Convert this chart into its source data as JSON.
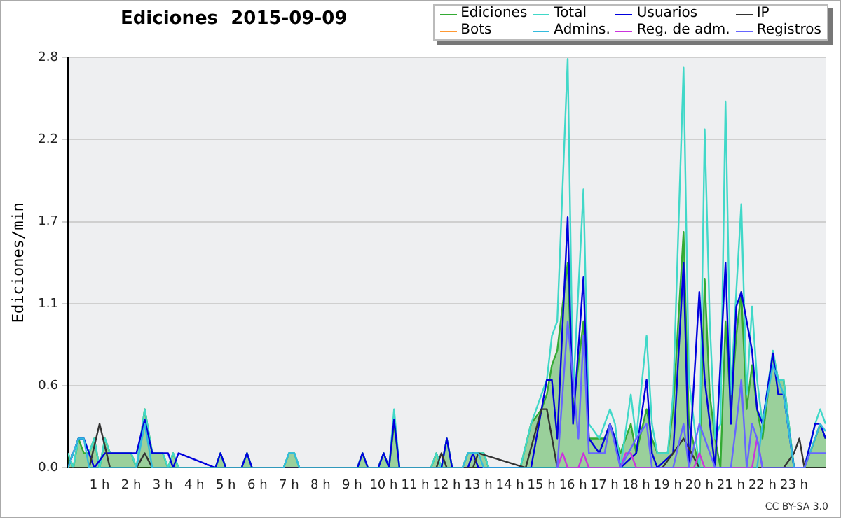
{
  "chart_data": {
    "type": "line",
    "title": "Ediciones  2015-09-09",
    "ylabel": "Ediciones/min",
    "annotations": [
      "CC BY-SA 3.0"
    ],
    "xlim": [
      0,
      24
    ],
    "xticks": [
      {
        "value": 1,
        "label": "1 h"
      },
      {
        "value": 2,
        "label": "2 h"
      },
      {
        "value": 3,
        "label": "3 h"
      },
      {
        "value": 4,
        "label": "4 h"
      },
      {
        "value": 5,
        "label": "5 h"
      },
      {
        "value": 6,
        "label": "6 h"
      },
      {
        "value": 7,
        "label": "7 h"
      },
      {
        "value": 8,
        "label": "8 h"
      },
      {
        "value": 9,
        "label": "9 h"
      },
      {
        "value": 10,
        "label": "10 h"
      },
      {
        "value": 11,
        "label": "11 h"
      },
      {
        "value": 12,
        "label": "12 h"
      },
      {
        "value": 13,
        "label": "13 h"
      },
      {
        "value": 14,
        "label": "14 h"
      },
      {
        "value": 15,
        "label": "15 h"
      },
      {
        "value": 16,
        "label": "16 h"
      },
      {
        "value": 17,
        "label": "17 h"
      },
      {
        "value": 18,
        "label": "18 h"
      },
      {
        "value": 19,
        "label": "19 h"
      },
      {
        "value": 20,
        "label": "20 h"
      },
      {
        "value": 21,
        "label": "21 h"
      },
      {
        "value": 22,
        "label": "22 h"
      },
      {
        "value": 23,
        "label": "23 h"
      }
    ],
    "ylim": [
      0,
      2.8
    ],
    "yticks": [
      {
        "value": 0,
        "label": "0.0"
      },
      {
        "value": 0.56,
        "label": "0.6"
      },
      {
        "value": 1.12,
        "label": "1.1"
      },
      {
        "value": 1.68,
        "label": "1.7"
      },
      {
        "value": 2.24,
        "label": "2.2"
      },
      {
        "value": 2.8,
        "label": "2.8"
      }
    ],
    "grid": "y",
    "legend": "top right",
    "marker": "none",
    "line_style": "solid",
    "series": [
      {
        "name": "Ediciones",
        "type": "area",
        "color": "#33aa33",
        "x": [
          0,
          0.17,
          0.33,
          0.5,
          0.67,
          0.83,
          1.0,
          1.17,
          1.33,
          1.5,
          1.83,
          2.0,
          2.17,
          2.43,
          2.67,
          3.0,
          3.17,
          3.33,
          3.5,
          4.67,
          4.83,
          5.0,
          5.5,
          5.67,
          5.83,
          6.83,
          7.0,
          7.17,
          7.33,
          9.17,
          9.33,
          9.5,
          9.83,
          10.0,
          10.17,
          10.33,
          10.5,
          11.5,
          11.67,
          11.83,
          12.0,
          12.17,
          12.5,
          12.67,
          13.17,
          13.33,
          14.33,
          14.67,
          15.0,
          15.17,
          15.33,
          15.5,
          15.83,
          16.0,
          16.33,
          16.5,
          16.83,
          17.0,
          17.17,
          17.33,
          17.5,
          17.83,
          18.0,
          18.33,
          18.5,
          18.67,
          19.0,
          19.17,
          19.5,
          19.67,
          20.0,
          20.17,
          20.33,
          20.5,
          20.67,
          20.83,
          21.0,
          21.17,
          21.33,
          21.5,
          21.67,
          21.83,
          22.0,
          22.33,
          22.5,
          22.67,
          23.0,
          23.33,
          23.67,
          23.83,
          24
        ],
        "values": [
          0.1,
          0,
          0.2,
          0.1,
          0.1,
          0.2,
          0,
          0.2,
          0.1,
          0.1,
          0.1,
          0.1,
          0,
          0.4,
          0.1,
          0.1,
          0,
          0.1,
          0,
          0,
          0.1,
          0,
          0,
          0.1,
          0,
          0,
          0.1,
          0.1,
          0,
          0,
          0.1,
          0,
          0,
          0.1,
          0,
          0.3,
          0,
          0,
          0.1,
          0,
          0.2,
          0,
          0,
          0.1,
          0.1,
          0,
          0,
          0.3,
          0.4,
          0.5,
          0.7,
          0.8,
          1.4,
          0.4,
          1.0,
          0.2,
          0.2,
          0.2,
          0.3,
          0.2,
          0.1,
          0.3,
          0.1,
          0.4,
          0.2,
          0.1,
          0.1,
          0.4,
          1.61,
          0.3,
          0,
          1.29,
          0.5,
          0.2,
          0,
          1.0,
          0.4,
          0.9,
          1.2,
          0.4,
          0.7,
          0.4,
          0.2,
          0.78,
          0.6,
          0.6,
          0,
          0,
          0.2,
          0.3,
          0.2
        ]
      },
      {
        "name": "Total",
        "color": "#40d8c8",
        "x": [
          0,
          0.17,
          0.33,
          0.5,
          0.67,
          0.83,
          1.0,
          1.17,
          1.33,
          1.5,
          1.83,
          2.0,
          2.17,
          2.43,
          2.67,
          3.0,
          3.17,
          3.33,
          3.5,
          4.67,
          4.83,
          5.0,
          5.5,
          5.67,
          5.83,
          6.83,
          7.0,
          7.17,
          7.33,
          9.17,
          9.33,
          9.5,
          9.83,
          10.0,
          10.17,
          10.33,
          10.5,
          11.5,
          11.67,
          11.83,
          12.0,
          12.17,
          12.5,
          12.67,
          13.17,
          13.33,
          14.33,
          14.67,
          15.0,
          15.17,
          15.33,
          15.5,
          15.83,
          16.0,
          16.33,
          16.5,
          16.83,
          17.0,
          17.17,
          17.33,
          17.5,
          17.83,
          18.0,
          18.33,
          18.5,
          18.67,
          19.0,
          19.17,
          19.5,
          19.67,
          20.0,
          20.17,
          20.33,
          20.5,
          20.67,
          20.83,
          21.0,
          21.17,
          21.33,
          21.5,
          21.67,
          21.83,
          22.0,
          22.33,
          22.5,
          22.67,
          23.0,
          23.33,
          23.67,
          23.83,
          24
        ],
        "values": [
          0.1,
          0,
          0.2,
          0.2,
          0.1,
          0.2,
          0,
          0.2,
          0.1,
          0.1,
          0.1,
          0.1,
          0,
          0.4,
          0.1,
          0.1,
          0,
          0.1,
          0,
          0,
          0.1,
          0,
          0,
          0.1,
          0,
          0,
          0.1,
          0.1,
          0,
          0,
          0.1,
          0,
          0,
          0.1,
          0,
          0.4,
          0,
          0,
          0.1,
          0,
          0.2,
          0,
          0,
          0.1,
          0.1,
          0,
          0,
          0.3,
          0.5,
          0.6,
          0.9,
          1.0,
          2.79,
          0.5,
          1.9,
          0.3,
          0.2,
          0.3,
          0.4,
          0.3,
          0,
          0.5,
          0.2,
          0.9,
          0.3,
          0.1,
          0.1,
          0.5,
          2.73,
          0.6,
          0,
          2.31,
          1.0,
          0.2,
          0.3,
          2.5,
          0.5,
          1.2,
          1.8,
          0.5,
          1.1,
          0.6,
          0.3,
          0.8,
          0.6,
          0.6,
          0,
          0,
          0.3,
          0.4,
          0.3
        ]
      },
      {
        "name": "Usuarios",
        "color": "#0000dd",
        "x": [
          0,
          0.33,
          0.5,
          0.83,
          1.17,
          1.5,
          1.83,
          2.17,
          2.43,
          2.67,
          3.17,
          3.33,
          3.5,
          4.67,
          4.83,
          5.0,
          5.5,
          5.67,
          5.83,
          9.17,
          9.33,
          9.5,
          9.83,
          10.0,
          10.17,
          10.33,
          10.5,
          11.83,
          12.0,
          12.17,
          12.67,
          12.83,
          13.0,
          14.67,
          15.17,
          15.33,
          15.5,
          15.83,
          16.0,
          16.33,
          16.5,
          16.83,
          17.0,
          17.17,
          17.33,
          17.5,
          18.0,
          18.33,
          18.5,
          18.67,
          19.17,
          19.5,
          19.67,
          20.0,
          20.17,
          20.5,
          20.83,
          21.0,
          21.17,
          21.33,
          21.67,
          21.83,
          22.0,
          22.33,
          22.5,
          22.67,
          23.0,
          23.33,
          23.67,
          23.83,
          24
        ],
        "values": [
          0,
          0.2,
          0.2,
          0,
          0.1,
          0.1,
          0.1,
          0.1,
          0.33,
          0.1,
          0.1,
          0,
          0.1,
          0,
          0.1,
          0,
          0,
          0.1,
          0,
          0,
          0.1,
          0,
          0,
          0.1,
          0,
          0.33,
          0,
          0,
          0.2,
          0,
          0,
          0.1,
          0,
          0,
          0.6,
          0.6,
          0.2,
          1.71,
          0.3,
          1.3,
          0.2,
          0.1,
          0.2,
          0.3,
          0.2,
          0,
          0.1,
          0.6,
          0.1,
          0,
          0.1,
          1.4,
          0,
          1.2,
          0.6,
          0,
          1.4,
          0.3,
          1.1,
          1.2,
          0.8,
          0.4,
          0.3,
          0.78,
          0.5,
          0.5,
          0,
          0,
          0.3,
          0.3,
          0.2
        ]
      },
      {
        "name": "IP",
        "color": "#333333",
        "x": [
          0,
          0.33,
          0.67,
          1.0,
          1.33,
          2.17,
          2.43,
          2.67,
          11.67,
          11.83,
          12.0,
          12.83,
          13.0,
          14.5,
          15.0,
          15.17,
          15.5,
          18.83,
          19.17,
          19.5,
          20.0,
          22.67,
          23.0,
          23.17,
          23.33,
          24
        ],
        "values": [
          0,
          0,
          0,
          0.3,
          0,
          0,
          0.1,
          0,
          0,
          0.1,
          0,
          0,
          0.1,
          0,
          0.4,
          0.4,
          0,
          0,
          0.1,
          0.2,
          0,
          0,
          0.1,
          0.2,
          0,
          0
        ]
      },
      {
        "name": "Bots",
        "color": "#ff9933"
      },
      {
        "name": "Admins.",
        "color": "#33bbdd",
        "x": [
          0,
          0.33,
          0.5,
          0.67,
          2.17,
          2.43,
          2.67,
          6.83,
          7.0,
          7.17,
          7.33,
          12.5,
          12.67,
          13.0,
          13.17,
          21.83,
          22.0,
          22.33,
          22.5,
          22.67,
          23.0,
          23.33,
          23.67,
          23.83,
          24
        ],
        "values": [
          0,
          0.2,
          0.2,
          0,
          0,
          0.3,
          0,
          0,
          0.1,
          0.1,
          0,
          0,
          0.1,
          0.1,
          0,
          0,
          0.3,
          0.7,
          0.6,
          0.5,
          0,
          0,
          0.2,
          0.3,
          0.25
        ]
      },
      {
        "name": "Reg. de adm.",
        "color": "#cc33dd",
        "x": [
          15.5,
          15.67,
          15.83,
          16.17,
          16.33,
          16.5,
          17.5,
          17.67,
          17.83,
          18.0,
          19.83,
          20.0,
          20.17,
          21.67,
          21.83,
          22.0
        ],
        "values": [
          0,
          0.1,
          0,
          0,
          0.1,
          0,
          0,
          0.1,
          0.1,
          0,
          0,
          0.1,
          0,
          0,
          0.2,
          0
        ]
      },
      {
        "name": "Registros",
        "color": "#6666ff",
        "x": [
          15.5,
          15.83,
          16.17,
          16.33,
          16.5,
          17.0,
          17.17,
          17.5,
          18.0,
          18.33,
          18.5,
          19.17,
          19.5,
          19.67,
          20.0,
          20.17,
          20.5,
          21.0,
          21.17,
          21.33,
          21.5,
          21.67,
          21.83,
          22.0,
          23.33,
          23.5,
          24
        ],
        "values": [
          0,
          1.0,
          0.2,
          0.9,
          0.1,
          0.1,
          0.3,
          0,
          0.2,
          0.3,
          0,
          0,
          0.3,
          0,
          0.3,
          0.2,
          0,
          0,
          0.3,
          0.6,
          0,
          0.3,
          0.2,
          0,
          0,
          0.1,
          0.1
        ]
      }
    ]
  }
}
